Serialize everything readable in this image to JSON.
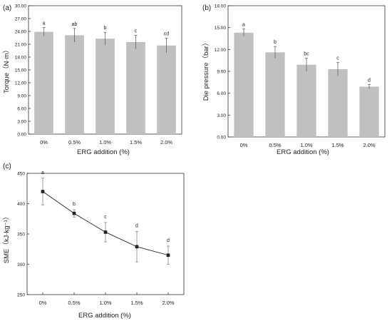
{
  "chart_data": [
    {
      "panel": "(a)",
      "type": "bar",
      "categories": [
        "0%",
        "0.5%",
        "1.0%",
        "1.5%",
        "2.0%"
      ],
      "values": [
        23.9,
        23.1,
        22.3,
        21.5,
        20.7
      ],
      "errors": [
        1.0,
        1.6,
        1.5,
        1.6,
        1.7
      ],
      "letters": [
        "a",
        "ab",
        "b",
        "c",
        "cd"
      ],
      "xlabel": "ERG addition (%)",
      "ylabel": "Torque（N·m）",
      "ylim": [
        0,
        30
      ],
      "yticks": [
        "0.00",
        "3.00",
        "6.00",
        "9.00",
        "12.00",
        "15.00",
        "18.00",
        "21.00",
        "24.00",
        "27.00",
        "30.00"
      ],
      "bar_color": "#c0c0c0"
    },
    {
      "panel": "(b)",
      "type": "bar",
      "categories": [
        "0%",
        "0.5%",
        "1.0%",
        "1.5%",
        "2.0%"
      ],
      "values": [
        14.3,
        11.6,
        9.9,
        9.3,
        6.9
      ],
      "errors": [
        0.5,
        0.8,
        0.9,
        0.9,
        0.3
      ],
      "letters": [
        "a",
        "b",
        "bc",
        "c",
        "d"
      ],
      "xlabel": "ERG addition (%)",
      "ylabel": "Die pressure（bar）",
      "ylim": [
        0,
        18
      ],
      "yticks": [
        "0.00",
        "3.00",
        "6.00",
        "9.00",
        "12.00",
        "15.00",
        "18.00"
      ],
      "bar_color": "#c0c0c0"
    },
    {
      "panel": "(c)",
      "type": "line",
      "categories": [
        "0%",
        "0.5%",
        "1.0%",
        "1.5%",
        "2.0%"
      ],
      "values": [
        420,
        384,
        353,
        329,
        315
      ],
      "errors": [
        22,
        6,
        16,
        25,
        15
      ],
      "letters": [
        "a",
        "b",
        "c",
        "d",
        "d"
      ],
      "xlabel": "ERG addition (%)",
      "ylabel": "SME（kJ·kg⁻¹）",
      "ylim": [
        250,
        450
      ],
      "yticks": [
        "250",
        "300",
        "350",
        "400",
        "450"
      ],
      "line_color": "#222222"
    }
  ]
}
